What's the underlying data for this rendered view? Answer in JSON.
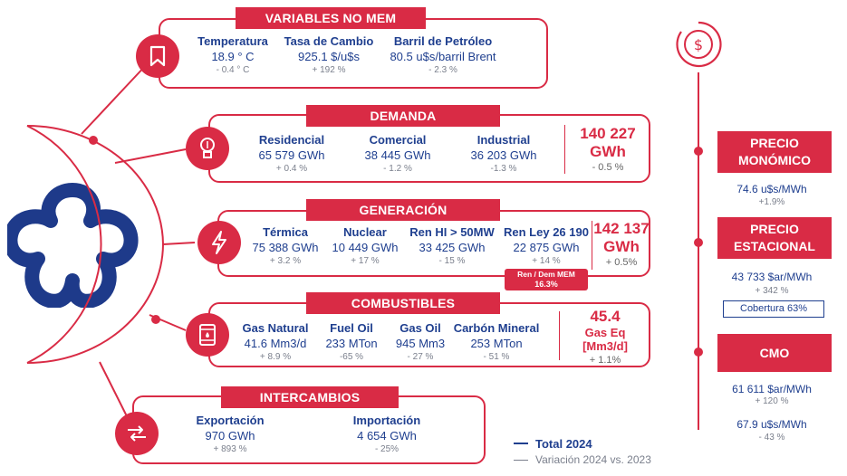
{
  "variables": {
    "title": "VARIABLES NO MEM",
    "icon": "bookmark-icon",
    "items": [
      {
        "label": "Temperatura",
        "value": "18.9 ° C",
        "var": "- 0.4 ° C"
      },
      {
        "label": "Tasa de Cambio",
        "value": "925.1 $/u$s",
        "var": "+ 192 %"
      },
      {
        "label": "Barril de Petróleo",
        "value": "80.5 u$s/barril Brent",
        "var": "- 2.3 %"
      }
    ]
  },
  "demanda": {
    "title": "DEMANDA",
    "icon": "lightbulb-icon",
    "items": [
      {
        "label": "Residencial",
        "value": "65 579 GWh",
        "var": "+ 0.4 %"
      },
      {
        "label": "Comercial",
        "value": "38 445 GWh",
        "var": "- 1.2 %"
      },
      {
        "label": "Industrial",
        "value": "36 203 GWh",
        "var": "-1.3 %"
      }
    ],
    "total_value": "140 227",
    "total_unit": "GWh",
    "total_var": "- 0.5 %"
  },
  "generacion": {
    "title": "GENERACIÓN",
    "icon": "lightning-icon",
    "items": [
      {
        "label": "Térmica",
        "value": "75 388 GWh",
        "var": "+ 3.2 %"
      },
      {
        "label": "Nuclear",
        "value": "10 449 GWh",
        "var": "+ 17 %"
      },
      {
        "label": "Ren HI > 50MW",
        "value": "33 425 GWh",
        "var": "- 15 %"
      },
      {
        "label": "Ren Ley 26 190",
        "value": "22 875 GWh",
        "var": "+ 14 %"
      }
    ],
    "total_value": "142 137",
    "total_unit": "GWh",
    "total_var": "+ 0.5%",
    "badge_label": "Ren / Dem MEM",
    "badge_value": "16.3%"
  },
  "combustibles": {
    "title": "COMBUSTIBLES",
    "icon": "fuel-barrel-icon",
    "items": [
      {
        "label": "Gas Natural",
        "value": "41.6  Mm3/d",
        "var": "+ 8.9 %"
      },
      {
        "label": "Fuel Oil",
        "value": "233  MTon",
        "var": "-65 %"
      },
      {
        "label": "Gas Oil",
        "value": "945  Mm3",
        "var": "- 27 %"
      },
      {
        "label": "Carbón Mineral",
        "value": "253  MTon",
        "var": "- 51  %"
      }
    ],
    "total_value": "45.4",
    "total_unit": "Gas Eq",
    "total_unit2": "[Mm3/d]",
    "total_var": "+ 1.1%"
  },
  "intercambios": {
    "title": "INTERCAMBIOS",
    "icon": "exchange-arrows-icon",
    "items": [
      {
        "label": "Exportación",
        "value": "970 GWh",
        "var": "+ 893 %"
      },
      {
        "label": "Importación",
        "value": "4 654 GWh",
        "var": "- 25%"
      }
    ]
  },
  "legend": {
    "total": "Total 2024",
    "variation": "Variación 2024 vs. 2023"
  },
  "right": {
    "icon": "dollar-icon",
    "precio_monomico": {
      "title1": "PRECIO",
      "title2": "MONÓMICO",
      "value": "74.6 u$s/MWh",
      "var": "+1.9%"
    },
    "precio_estacional": {
      "title1": "PRECIO",
      "title2": "ESTACIONAL",
      "value": "43 733 $ar/MWh",
      "var": "+ 342 %",
      "cobertura": "Cobertura 63%"
    },
    "cmo": {
      "title": "CMO",
      "value1": "61 611 $ar/MWh",
      "var1": "+ 120 %",
      "value2": "67.9 u$s/MWh",
      "var2": "- 43 %"
    }
  },
  "colors": {
    "accent": "#d92b45",
    "primary": "#1f3f8f",
    "muted": "#7a7f8c"
  }
}
